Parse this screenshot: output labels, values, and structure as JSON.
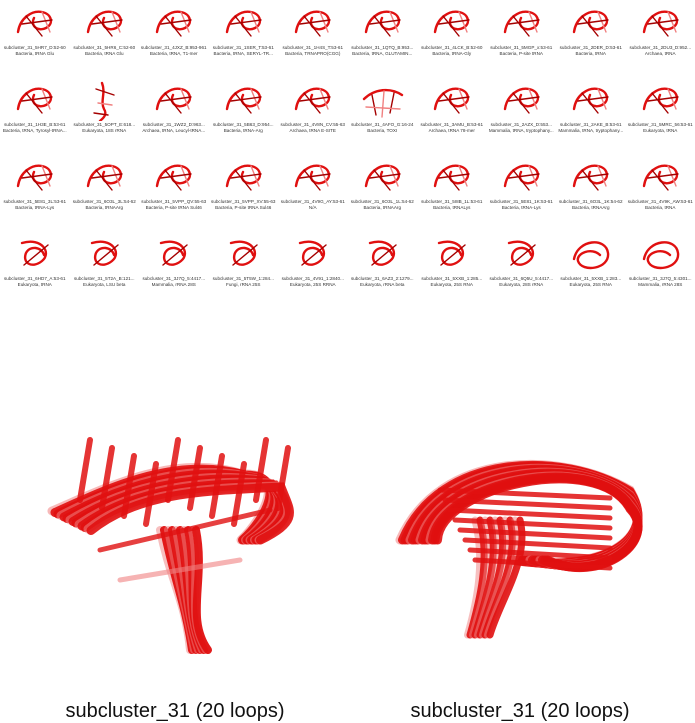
{
  "thumbnails": [
    {
      "id": "subcluster_31_5HR7_D:52-60",
      "org": "Bacteria, tRNA Glu"
    },
    {
      "id": "subcluster_31_5HR6_C:52-60",
      "org": "Bacteria, tRNA Glu"
    },
    {
      "id": "subcluster_31_4JXZ_B:953-961",
      "org": "Bacteria, tRNA, T1-mer"
    },
    {
      "id": "subcluster_31_1SER_T:53-61",
      "org": "Bacteria, tRNA, SERYL-TR..."
    },
    {
      "id": "subcluster_31_1H4S_T:53-61",
      "org": "Bacteria, TRNAPRO(CGG)"
    },
    {
      "id": "subcluster_31_1QTQ_B:953...",
      "org": "Bacteria, tRNA, GLUTAMIN..."
    },
    {
      "id": "subcluster_31_4LCK_B:52-60",
      "org": "Bacteria, tRNA-Gly"
    },
    {
      "id": "subcluster_31_5MGP_x:53-61",
      "org": "Bacteria, P-site tRNA"
    },
    {
      "id": "subcluster_31_2DER_D:53-61",
      "org": "Bacteria, tRNA"
    },
    {
      "id": "subcluster_31_2DU3_D:952...",
      "org": "Archaea, tRNA"
    },
    {
      "id": "subcluster_31_1H3E_B:53-61",
      "org": "Bacteria, tRNA, Tyrosyl-tRNA..."
    },
    {
      "id": "subcluster_31_5OPT_E:618...",
      "org": "Eukaryota, 18S rRNA"
    },
    {
      "id": "subcluster_31_1WZ2_D:963...",
      "org": "Archaea, tRNA, Leucyl-tRNA..."
    },
    {
      "id": "subcluster_31_5B63_D:954...",
      "org": "Bacteria, tRNA-Arg"
    },
    {
      "id": "subcluster_31_4V8N_CV:55-63",
      "org": "Archaea, tRNA E-SITE"
    },
    {
      "id": "subcluster_31_4AFO_G:16-24",
      "org": "Bacteria, TOXI"
    },
    {
      "id": "subcluster_31_3AMU_B:53-61",
      "org": "Archaea, tRNA 78-mer"
    },
    {
      "id": "subcluster_31_2AZX_D:553...",
      "org": "Mammalia, tRNA, tryptophany..."
    },
    {
      "id": "subcluster_31_2AKE_B:53-61",
      "org": "Mammalia, tRNA, tryptophany..."
    },
    {
      "id": "subcluster_31_5MRC_56:53-61",
      "org": "Eukaryota, tRNA"
    },
    {
      "id": "subcluster_31_5E81_3L:53-61",
      "org": "Bacteria, tRNA-Lys"
    },
    {
      "id": "subcluster_31_6O3L_3L:54-62",
      "org": "Bacteria, tRNAArg"
    },
    {
      "id": "subcluster_31_5VPP_QV:55-63",
      "org": "Bacteria, P-site tRNA Sul46"
    },
    {
      "id": "subcluster_31_5VPP_XV:55-63",
      "org": "Bacteria, P-site tRNA Sul46"
    },
    {
      "id": "subcluster_31_4V9G_AY:53-61",
      "org": "N/A"
    },
    {
      "id": "subcluster_31_6O3L_1L:54-62",
      "org": "Bacteria, tRNAArg"
    },
    {
      "id": "subcluster_31_5I8B_1L:53-61",
      "org": "Bacteria, tRNALys"
    },
    {
      "id": "subcluster_31_5E81_1K:53-61",
      "org": "Bacteria, tRNA-Lys"
    },
    {
      "id": "subcluster_31_6O3L_1K:54-62",
      "org": "Bacteria, tRNAArg"
    },
    {
      "id": "subcluster_31_4V9K_AW:53-61",
      "org": "Bacteria, tRNA"
    },
    {
      "id": "subcluster_31_6HD7_A:53-61",
      "org": "Eukaryota, tRNA"
    },
    {
      "id": "subcluster_31_5T2A_B:121...",
      "org": "Eukaryota, LSU beta"
    },
    {
      "id": "subcluster_31_3J7Q_5:4417...",
      "org": "Mammalia, rRNA 28S"
    },
    {
      "id": "subcluster_31_5T5W_1:284...",
      "org": "Fungi, rRNA 25S"
    },
    {
      "id": "subcluster_31_4V91_1:2840...",
      "org": "Eukaryota, 25S RRNA"
    },
    {
      "id": "subcluster_31_6AZ3_2:1279...",
      "org": "Eukaryota, rRNA beta"
    },
    {
      "id": "subcluster_31_5XXB_1:285...",
      "org": "Eukaryota, 25S RNA"
    },
    {
      "id": "subcluster_31_6Q5U_5:4417...",
      "org": "Eukaryota, 28S rRNA"
    },
    {
      "id": "subcluster_31_5XXB_1:283...",
      "org": "Eukaryota, 25S RNA"
    },
    {
      "id": "subcluster_31_3J7Q_5:4301...",
      "org": "Mammalia, rRNA 28S"
    }
  ],
  "superpositions": [
    {
      "label": "subcluster_31 (20 loops)"
    },
    {
      "label": "subcluster_31 (20 loops)"
    }
  ],
  "colors": {
    "rna": "#e01010",
    "rna_dark": "#a50000",
    "rna_light": "#f08080"
  }
}
